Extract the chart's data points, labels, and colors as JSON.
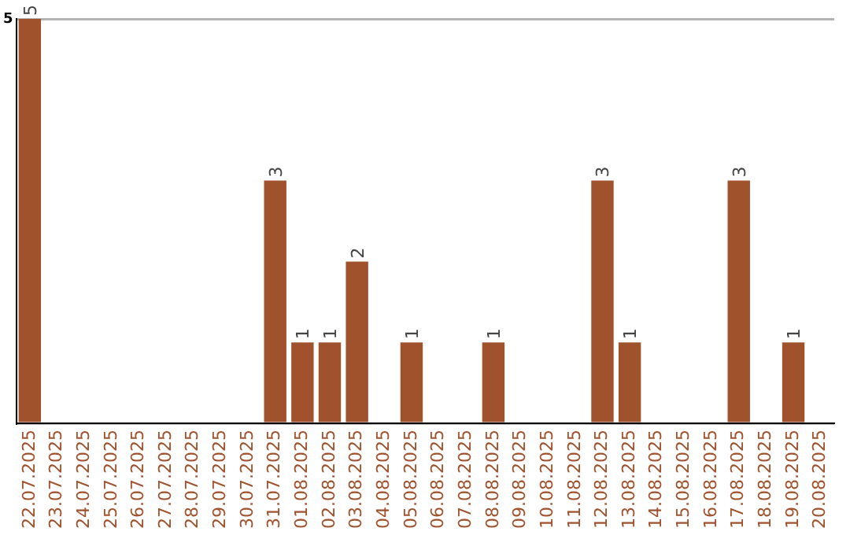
{
  "chart_data": {
    "type": "bar",
    "categories": [
      "22.07.2025",
      "23.07.2025",
      "24.07.2025",
      "25.07.2025",
      "26.07.2025",
      "27.07.2025",
      "28.07.2025",
      "29.07.2025",
      "30.07.2025",
      "31.07.2025",
      "01.08.2025",
      "02.08.2025",
      "03.08.2025",
      "04.08.2025",
      "05.08.2025",
      "06.08.2025",
      "07.08.2025",
      "08.08.2025",
      "09.08.2025",
      "10.08.2025",
      "11.08.2025",
      "12.08.2025",
      "13.08.2025",
      "14.08.2025",
      "15.08.2025",
      "16.08.2025",
      "17.08.2025",
      "18.08.2025",
      "19.08.2025",
      "20.08.2025"
    ],
    "values": [
      5,
      0,
      0,
      0,
      0,
      0,
      0,
      0,
      0,
      3,
      1,
      1,
      2,
      0,
      1,
      0,
      0,
      1,
      0,
      0,
      0,
      3,
      1,
      0,
      0,
      0,
      3,
      0,
      1,
      0
    ],
    "value_labels": [
      "5",
      null,
      null,
      null,
      null,
      null,
      null,
      null,
      null,
      "3",
      "1",
      "1",
      "2",
      null,
      "1",
      null,
      null,
      "1",
      null,
      null,
      null,
      "3",
      "1",
      null,
      null,
      null,
      "3",
      null,
      "1",
      null
    ],
    "color": "#a0522d",
    "ylim": [
      0,
      5
    ],
    "yticks": [
      {
        "value": 0,
        "label": null
      },
      5
    ],
    "grid": "y",
    "legend": false
  }
}
